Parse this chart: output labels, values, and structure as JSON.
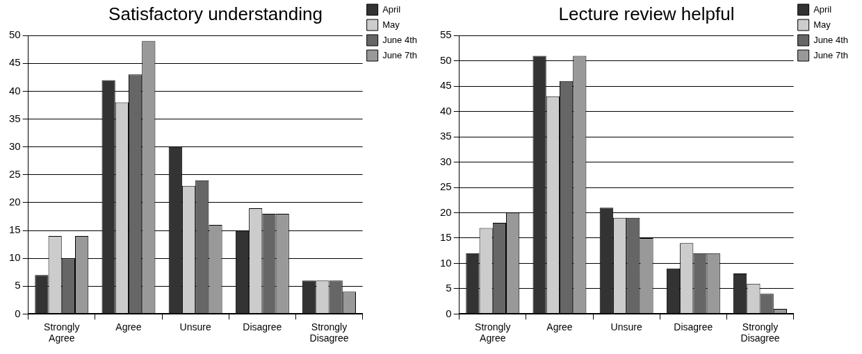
{
  "chart_data": [
    {
      "type": "bar",
      "title": "Satisfactory understanding",
      "categories": [
        "Strongly Agree",
        "Agree",
        "Unsure",
        "Disagree",
        "Strongly Disagree"
      ],
      "series": [
        {
          "name": "April",
          "color": "#333333",
          "values": [
            7,
            42,
            30,
            15,
            6
          ]
        },
        {
          "name": "May",
          "color": "#cccccc",
          "values": [
            14,
            38,
            23,
            19,
            6
          ]
        },
        {
          "name": "June 4th",
          "color": "#666666",
          "values": [
            10,
            43,
            24,
            18,
            6
          ]
        },
        {
          "name": "June 7th",
          "color": "#999999",
          "values": [
            14,
            49,
            16,
            18,
            4
          ]
        }
      ],
      "ylim": [
        0,
        50
      ],
      "yticks": [
        0,
        5,
        10,
        15,
        20,
        25,
        30,
        35,
        40,
        45,
        50
      ],
      "grid": "y",
      "legend": "right"
    },
    {
      "type": "bar",
      "title": "Lecture review helpful",
      "categories": [
        "Strongly Agree",
        "Agree",
        "Unsure",
        "Disagree",
        "Strongly Disagree"
      ],
      "series": [
        {
          "name": "April",
          "color": "#333333",
          "values": [
            12,
            51,
            21,
            9,
            8
          ]
        },
        {
          "name": "May",
          "color": "#cccccc",
          "values": [
            17,
            43,
            19,
            14,
            6
          ]
        },
        {
          "name": "June 4th",
          "color": "#666666",
          "values": [
            18,
            46,
            19,
            12,
            4
          ]
        },
        {
          "name": "June 7th",
          "color": "#999999",
          "values": [
            20,
            51,
            15,
            12,
            1
          ]
        }
      ],
      "ylim": [
        0,
        55
      ],
      "yticks": [
        0,
        5,
        10,
        15,
        20,
        25,
        30,
        35,
        40,
        45,
        50,
        55
      ],
      "grid": "y",
      "legend": "right"
    }
  ]
}
